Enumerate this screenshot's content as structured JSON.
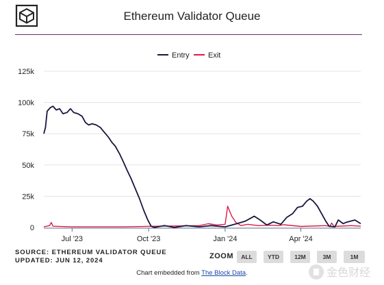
{
  "header": {
    "title": "Ethereum Validator Queue"
  },
  "footer": {
    "source": "SOURCE: ETHEREUM VALIDATOR QUEUE",
    "updated": "UPDATED: JUN 12, 2024",
    "zoom_label": "ZOOM",
    "zoom_buttons": [
      "ALL",
      "YTD",
      "12M",
      "3M",
      "1M"
    ],
    "embed_prefix": "Chart embedded from ",
    "embed_link": "The Block Data",
    "embed_suffix": "."
  },
  "watermark": {
    "text": "金色财经"
  },
  "colors": {
    "entry": "#16163f",
    "exit": "#dc1a48",
    "rule": "#6a2d6d",
    "grid": "#e3e3e3"
  },
  "chart_data": {
    "type": "line",
    "title": "Ethereum Validator Queue",
    "xlabel": "",
    "ylabel": "",
    "ylim": [
      0,
      125000
    ],
    "yticks": [
      0,
      25000,
      50000,
      75000,
      100000,
      125000
    ],
    "ytick_labels": [
      "0",
      "25k",
      "50k",
      "75k",
      "100k",
      "125k"
    ],
    "xlim": [
      "2024-05-28",
      "2024-06-12"
    ],
    "xticks": [
      "2023-07-01",
      "2023-10-01",
      "2024-01-01",
      "2024-04-01"
    ],
    "xtick_labels": [
      "Jul '23",
      "Oct '23",
      "Jan '24",
      "Apr '24"
    ],
    "grid": "horizontal",
    "legend_position": "top-center",
    "series": [
      {
        "name": "Entry",
        "points": [
          [
            "2023-05-28",
            75000
          ],
          [
            "2023-05-30",
            80000
          ],
          [
            "2023-06-01",
            93000
          ],
          [
            "2023-06-05",
            96000
          ],
          [
            "2023-06-08",
            97000
          ],
          [
            "2023-06-12",
            94000
          ],
          [
            "2023-06-16",
            95000
          ],
          [
            "2023-06-20",
            91000
          ],
          [
            "2023-06-25",
            92000
          ],
          [
            "2023-06-29",
            95000
          ],
          [
            "2023-07-03",
            92000
          ],
          [
            "2023-07-08",
            91000
          ],
          [
            "2023-07-13",
            89000
          ],
          [
            "2023-07-17",
            84000
          ],
          [
            "2023-07-21",
            82000
          ],
          [
            "2023-07-25",
            83000
          ],
          [
            "2023-07-30",
            82000
          ],
          [
            "2023-08-04",
            80000
          ],
          [
            "2023-08-09",
            76000
          ],
          [
            "2023-08-14",
            72000
          ],
          [
            "2023-08-18",
            68000
          ],
          [
            "2023-08-22",
            65000
          ],
          [
            "2023-08-27",
            59000
          ],
          [
            "2023-09-01",
            52000
          ],
          [
            "2023-09-05",
            46000
          ],
          [
            "2023-09-10",
            39000
          ],
          [
            "2023-09-15",
            31000
          ],
          [
            "2023-09-20",
            23000
          ],
          [
            "2023-09-25",
            14000
          ],
          [
            "2023-09-30",
            6000
          ],
          [
            "2023-10-04",
            1000
          ],
          [
            "2023-10-08",
            0
          ],
          [
            "2023-10-20",
            1500
          ],
          [
            "2023-11-01",
            0
          ],
          [
            "2023-11-15",
            1500
          ],
          [
            "2023-12-01",
            500
          ],
          [
            "2023-12-15",
            1500
          ],
          [
            "2024-01-01",
            500
          ],
          [
            "2024-01-15",
            3000
          ],
          [
            "2024-01-25",
            5000
          ],
          [
            "2024-02-05",
            9000
          ],
          [
            "2024-02-12",
            6000
          ],
          [
            "2024-02-20",
            2000
          ],
          [
            "2024-02-28",
            4500
          ],
          [
            "2024-03-08",
            2500
          ],
          [
            "2024-03-15",
            8000
          ],
          [
            "2024-03-22",
            11000
          ],
          [
            "2024-03-28",
            16000
          ],
          [
            "2024-04-03",
            17000
          ],
          [
            "2024-04-08",
            21000
          ],
          [
            "2024-04-12",
            23000
          ],
          [
            "2024-04-16",
            21000
          ],
          [
            "2024-04-21",
            17000
          ],
          [
            "2024-04-26",
            11000
          ],
          [
            "2024-05-01",
            5000
          ],
          [
            "2024-05-05",
            1000
          ],
          [
            "2024-05-12",
            500
          ],
          [
            "2024-05-16",
            6000
          ],
          [
            "2024-05-22",
            3000
          ],
          [
            "2024-05-25",
            4000
          ],
          [
            "2024-06-05",
            6000
          ],
          [
            "2024-06-12",
            3000
          ]
        ]
      },
      {
        "name": "Exit",
        "points": [
          [
            "2023-05-28",
            500
          ],
          [
            "2023-06-04",
            1500
          ],
          [
            "2023-06-06",
            4000
          ],
          [
            "2023-06-08",
            1000
          ],
          [
            "2023-07-01",
            500
          ],
          [
            "2023-09-01",
            500
          ],
          [
            "2023-10-10",
            1000
          ],
          [
            "2023-11-05",
            1200
          ],
          [
            "2023-12-01",
            1500
          ],
          [
            "2023-12-12",
            3000
          ],
          [
            "2023-12-22",
            2000
          ],
          [
            "2024-01-01",
            2500
          ],
          [
            "2024-01-04",
            17000
          ],
          [
            "2024-01-09",
            9000
          ],
          [
            "2024-01-14",
            4000
          ],
          [
            "2024-01-20",
            1500
          ],
          [
            "2024-01-28",
            2500
          ],
          [
            "2024-02-10",
            1500
          ],
          [
            "2024-02-24",
            1800
          ],
          [
            "2024-03-06",
            1500
          ],
          [
            "2024-03-11",
            2200
          ],
          [
            "2024-04-01",
            800
          ],
          [
            "2024-05-01",
            1500
          ],
          [
            "2024-05-06",
            800
          ],
          [
            "2024-05-08",
            3500
          ],
          [
            "2024-05-11",
            800
          ],
          [
            "2024-06-01",
            1500
          ],
          [
            "2024-06-12",
            1000
          ]
        ]
      }
    ]
  }
}
